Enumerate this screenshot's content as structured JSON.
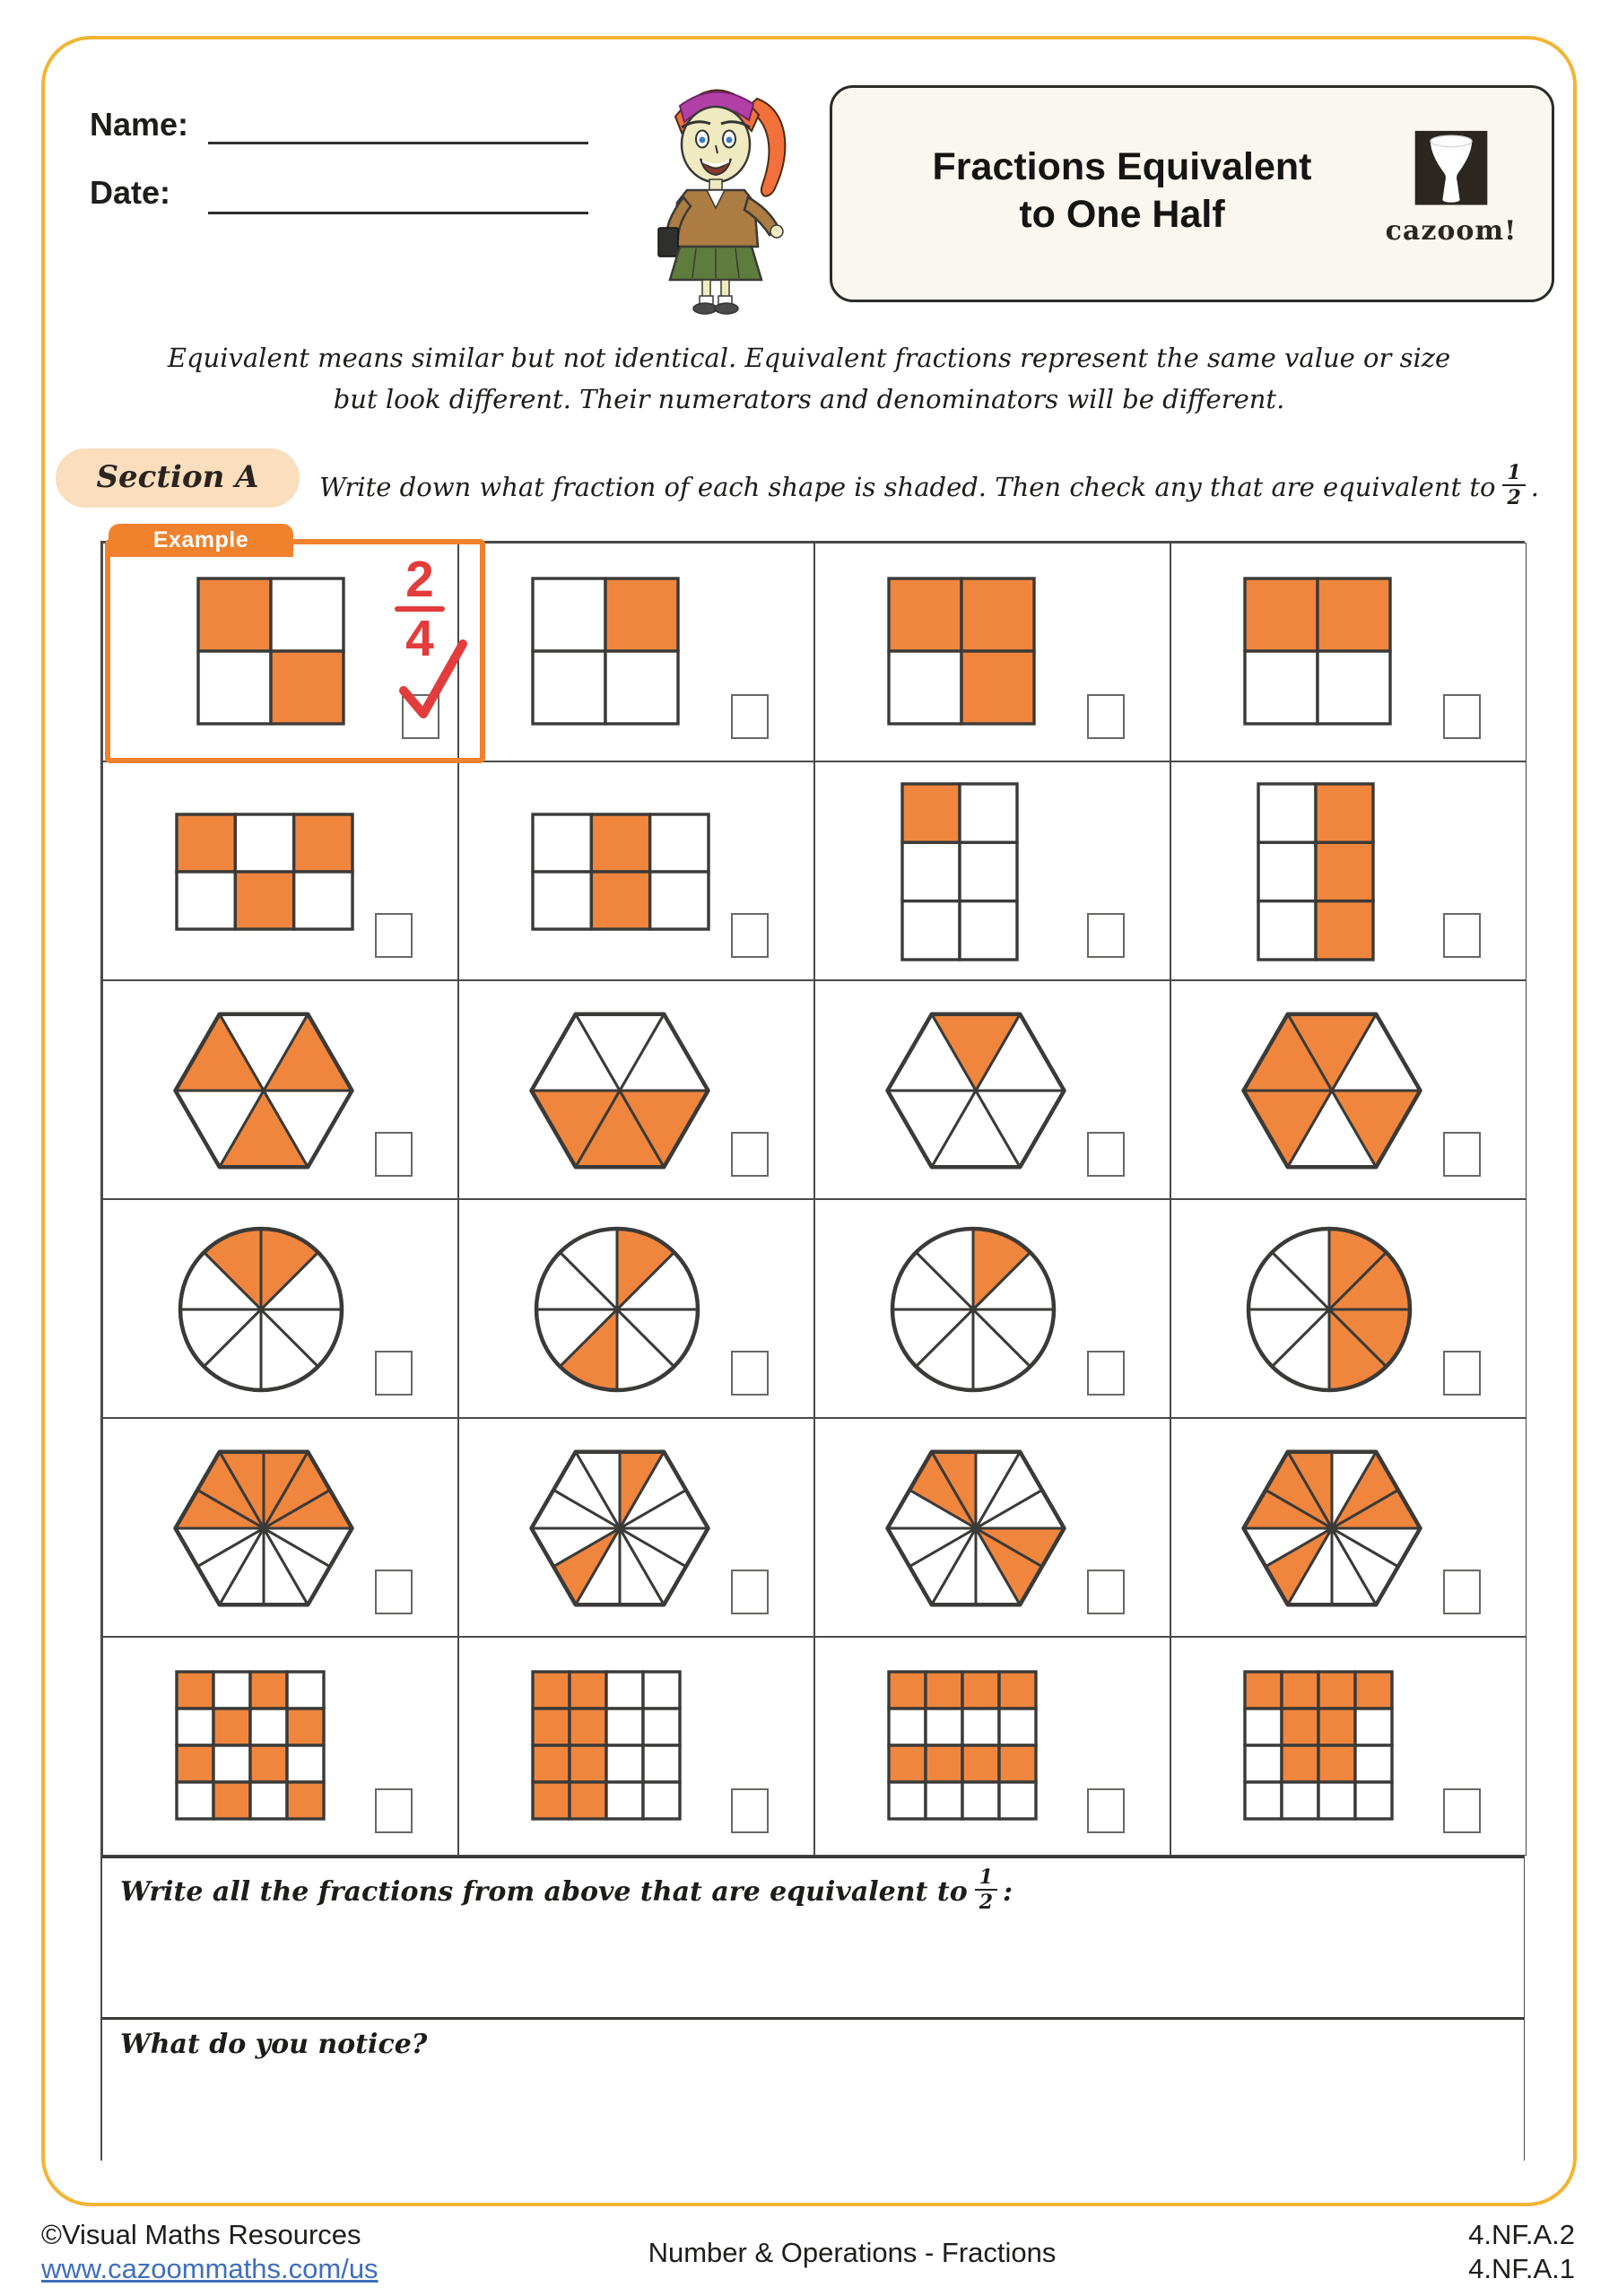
{
  "header": {
    "name_label": "Name:",
    "date_label": "Date:"
  },
  "title": {
    "line1": "Fractions Equivalent",
    "line2": "to One Half",
    "logo_text": "cazoom!"
  },
  "intro": {
    "line1": "Equivalent means similar but not identical. Equivalent fractions represent the same value or size",
    "line2": "but look different. Their numerators and denominators will be different."
  },
  "section_a": {
    "label": "Section A",
    "instruction": "Write down what fraction of each shape is shaded. Then check any that are equivalent to",
    "frac_n": "1",
    "frac_d": "2",
    "suffix": "."
  },
  "example": {
    "tab_label": "Example",
    "answer_n": "2",
    "answer_d": "4",
    "checked": true
  },
  "grid": {
    "rows": [
      {
        "cells": [
          {
            "shape": "square-grid",
            "cols": 2,
            "rows": 2,
            "total": 4,
            "shaded": [
              0,
              3
            ],
            "example": true,
            "checkbox_checked": true
          },
          {
            "shape": "square-grid",
            "cols": 2,
            "rows": 2,
            "total": 4,
            "shaded": [
              1
            ],
            "checkbox_checked": false
          },
          {
            "shape": "square-grid",
            "cols": 2,
            "rows": 2,
            "total": 4,
            "shaded": [
              0,
              1,
              3
            ],
            "checkbox_checked": false
          },
          {
            "shape": "square-grid",
            "cols": 2,
            "rows": 2,
            "total": 4,
            "shaded": [
              0,
              1
            ],
            "checkbox_checked": false
          }
        ]
      },
      {
        "cells": [
          {
            "shape": "rect-grid",
            "cols": 3,
            "rows": 2,
            "total": 6,
            "shaded": [
              0,
              2,
              4
            ],
            "checkbox_checked": false
          },
          {
            "shape": "rect-grid",
            "cols": 3,
            "rows": 2,
            "total": 6,
            "shaded": [
              1,
              4
            ],
            "checkbox_checked": false
          },
          {
            "shape": "rect-grid",
            "cols": 2,
            "rows": 3,
            "total": 6,
            "shaded": [
              0
            ],
            "checkbox_checked": false
          },
          {
            "shape": "rect-grid",
            "cols": 2,
            "rows": 3,
            "total": 6,
            "shaded": [
              1,
              3,
              5
            ],
            "checkbox_checked": false
          }
        ]
      },
      {
        "cells": [
          {
            "shape": "hexagon",
            "wedges": 6,
            "total": 6,
            "shaded": [
              0,
              2,
              4
            ],
            "checkbox_checked": false
          },
          {
            "shape": "hexagon",
            "wedges": 6,
            "total": 6,
            "shaded": [
              3,
              4,
              5
            ],
            "checkbox_checked": false
          },
          {
            "shape": "hexagon",
            "wedges": 6,
            "total": 6,
            "shaded": [
              1
            ],
            "checkbox_checked": false
          },
          {
            "shape": "hexagon",
            "wedges": 6,
            "total": 6,
            "shaded": [
              1,
              2,
              3,
              5
            ],
            "checkbox_checked": false
          }
        ]
      },
      {
        "cells": [
          {
            "shape": "circle",
            "sectors": 8,
            "total": 8,
            "shaded": [
              1,
              2
            ],
            "checkbox_checked": false
          },
          {
            "shape": "circle",
            "sectors": 8,
            "total": 8,
            "shaded": [
              1,
              5
            ],
            "checkbox_checked": false
          },
          {
            "shape": "circle",
            "sectors": 8,
            "total": 8,
            "shaded": [
              1
            ],
            "checkbox_checked": false
          },
          {
            "shape": "circle",
            "sectors": 8,
            "total": 8,
            "shaded": [
              0,
              1,
              6,
              7
            ],
            "checkbox_checked": false
          }
        ]
      },
      {
        "cells": [
          {
            "shape": "hexagon",
            "wedges": 12,
            "total": 12,
            "shaded": [
              0,
              1,
              2,
              3,
              4,
              5
            ],
            "checkbox_checked": false
          },
          {
            "shape": "hexagon",
            "wedges": 12,
            "total": 12,
            "shaded": [
              2,
              7
            ],
            "checkbox_checked": false
          },
          {
            "shape": "hexagon",
            "wedges": 12,
            "total": 12,
            "shaded": [
              3,
              4,
              10,
              11
            ],
            "checkbox_checked": false
          },
          {
            "shape": "hexagon",
            "wedges": 12,
            "total": 12,
            "shaded": [
              0,
              1,
              3,
              4,
              5,
              7
            ],
            "checkbox_checked": false
          }
        ]
      },
      {
        "cells": [
          {
            "shape": "square-grid",
            "cols": 4,
            "rows": 4,
            "total": 16,
            "shaded": [
              0,
              2,
              5,
              7,
              8,
              10,
              13,
              15
            ],
            "checkbox_checked": false
          },
          {
            "shape": "square-grid",
            "cols": 4,
            "rows": 4,
            "total": 16,
            "shaded": [
              0,
              1,
              4,
              5,
              8,
              9,
              12,
              13
            ],
            "checkbox_checked": false
          },
          {
            "shape": "square-grid",
            "cols": 4,
            "rows": 4,
            "total": 16,
            "shaded": [
              0,
              1,
              2,
              3,
              8,
              9,
              10,
              11
            ],
            "checkbox_checked": false
          },
          {
            "shape": "square-grid",
            "cols": 4,
            "rows": 4,
            "total": 16,
            "shaded": [
              0,
              1,
              2,
              3,
              5,
              6,
              9,
              10
            ],
            "checkbox_checked": false
          }
        ]
      }
    ]
  },
  "questions": {
    "q1_prefix": "Write all the fractions from above that are equivalent to",
    "q1_frac_n": "1",
    "q1_frac_d": "2",
    "q1_suffix": ":",
    "q2": "What do you notice?"
  },
  "footer": {
    "copyright": "©Visual Maths Resources",
    "link": "www.cazoommaths.com/us",
    "center": "Number & Operations - Fractions",
    "standard1": "4.NF.A.2",
    "standard2": "4.NF.A.1"
  },
  "colors": {
    "shade_orange": "#F0863E",
    "example_border_orange": "#F0812D",
    "mark_red": "#E23C3C",
    "frame_gold": "#F1B434",
    "section_peach": "#FBDEBD",
    "link_blue": "#3E6FBE",
    "shape_stroke": "#3A3A38"
  }
}
